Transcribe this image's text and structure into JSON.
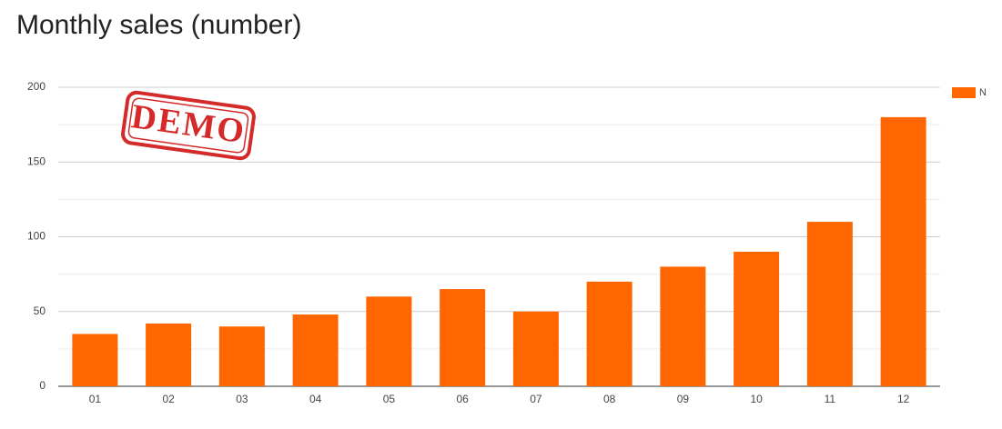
{
  "chart_data": {
    "type": "bar",
    "title": "Monthly sales (number)",
    "stamp": "DEMO",
    "categories": [
      "01",
      "02",
      "03",
      "04",
      "05",
      "06",
      "07",
      "08",
      "09",
      "10",
      "11",
      "12"
    ],
    "series": [
      {
        "name": "N",
        "color": "#ff6600",
        "values": [
          35,
          42,
          40,
          48,
          60,
          65,
          50,
          70,
          80,
          90,
          110,
          180
        ]
      }
    ],
    "ylim": [
      0,
      200
    ],
    "yticks": [
      0,
      50,
      100,
      150,
      200
    ],
    "grid": true,
    "minor_grid": true,
    "legend": "top-right"
  }
}
